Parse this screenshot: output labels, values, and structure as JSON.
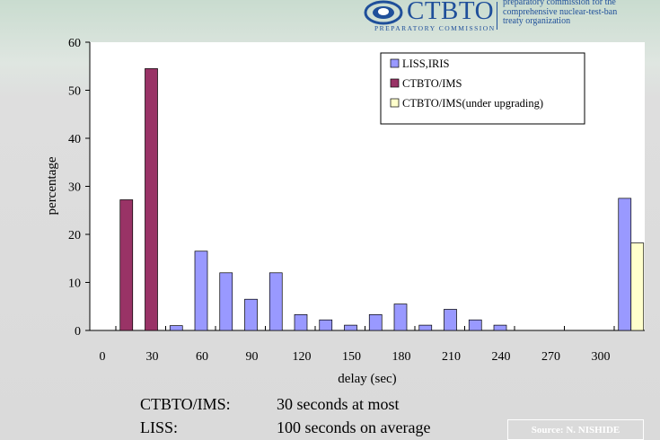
{
  "header": {
    "logo_name": "CTBTO",
    "logo_subtitle": "PREPARATORY COMMISSION",
    "logo_desc": [
      "preparatory commission for the",
      "comprehensive nuclear-test-ban",
      "treaty organization"
    ]
  },
  "chart_data": {
    "type": "bar",
    "xlabel": "delay (sec)",
    "ylabel": "percentage",
    "ylim": [
      0,
      60
    ],
    "yticks": [
      0,
      10,
      20,
      30,
      40,
      50,
      60
    ],
    "xticks": [
      0,
      30,
      60,
      90,
      120,
      150,
      180,
      210,
      240,
      270,
      300
    ],
    "grid": false,
    "legend_position": "top-right",
    "series": [
      {
        "name": "LISS,IRIS",
        "color": "#9999ff",
        "points": [
          [
            45,
            1
          ],
          [
            60,
            16.5
          ],
          [
            75,
            12
          ],
          [
            90,
            6.5
          ],
          [
            105,
            12
          ],
          [
            120,
            3.3
          ],
          [
            135,
            2.2
          ],
          [
            150,
            1.1
          ],
          [
            165,
            3.3
          ],
          [
            180,
            5.5
          ],
          [
            195,
            1.1
          ],
          [
            210,
            4.4
          ],
          [
            225,
            2.2
          ],
          [
            240,
            1.1
          ],
          [
            315,
            27.5
          ]
        ]
      },
      {
        "name": "CTBTO/IMS",
        "color": "#993366",
        "points": [
          [
            15,
            27.2
          ],
          [
            30,
            54.5
          ]
        ]
      },
      {
        "name": "CTBTO/IMS(under upgrading)",
        "color": "#ffffcc",
        "points": [
          [
            315,
            18.2
          ]
        ]
      }
    ]
  },
  "notes": [
    {
      "label": "CTBTO/IMS:",
      "value": "30 seconds at most"
    },
    {
      "label": "LISS:",
      "value": "100 seconds on average"
    }
  ],
  "source": "Source: N. NISHIDE"
}
